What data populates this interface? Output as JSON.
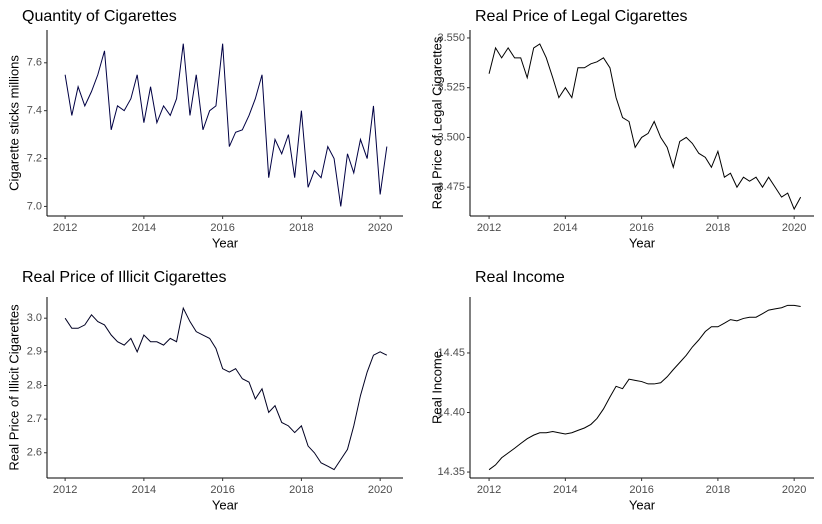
{
  "chart_data": [
    {
      "type": "line",
      "title": "Quantity of Cigarettes",
      "xlabel": "Year",
      "ylabel": "Cigarette sticks millions",
      "color": "#000044",
      "x": [
        2012.0,
        2012.17,
        2012.33,
        2012.5,
        2012.67,
        2012.83,
        2013.0,
        2013.17,
        2013.33,
        2013.5,
        2013.67,
        2013.83,
        2014.0,
        2014.17,
        2014.33,
        2014.5,
        2014.67,
        2014.83,
        2015.0,
        2015.17,
        2015.33,
        2015.5,
        2015.67,
        2015.83,
        2016.0,
        2016.17,
        2016.33,
        2016.5,
        2016.67,
        2016.83,
        2017.0,
        2017.17,
        2017.33,
        2017.5,
        2017.67,
        2017.83,
        2018.0,
        2018.17,
        2018.33,
        2018.5,
        2018.67,
        2018.83,
        2019.0,
        2019.17,
        2019.33,
        2019.5,
        2019.67,
        2019.83,
        2020.0,
        2020.17
      ],
      "values": [
        7.55,
        7.38,
        7.5,
        7.42,
        7.48,
        7.55,
        7.65,
        7.32,
        7.42,
        7.4,
        7.45,
        7.55,
        7.35,
        7.5,
        7.35,
        7.42,
        7.38,
        7.45,
        7.68,
        7.38,
        7.55,
        7.32,
        7.4,
        7.42,
        7.68,
        7.25,
        7.31,
        7.32,
        7.38,
        7.45,
        7.55,
        7.12,
        7.28,
        7.22,
        7.3,
        7.12,
        7.4,
        7.08,
        7.15,
        7.12,
        7.25,
        7.2,
        7.0,
        7.22,
        7.14,
        7.28,
        7.2,
        7.42,
        7.05,
        7.25
      ],
      "xlim": [
        2011.54,
        2020.58
      ],
      "ylim": [
        6.96,
        7.737
      ],
      "xticks": [
        2012,
        2014,
        2016,
        2018,
        2020
      ],
      "yticks": [
        {
          "value": 7.0,
          "label": "7.0"
        },
        7.2,
        7.4,
        7.6
      ]
    },
    {
      "type": "line",
      "title": "Real Price of Legal Cigarettes",
      "xlabel": "Year",
      "ylabel": "Real Price of Legal Cigarettes",
      "color": "#000000",
      "x": [
        2012.0,
        2012.17,
        2012.33,
        2012.5,
        2012.67,
        2012.83,
        2013.0,
        2013.17,
        2013.33,
        2013.5,
        2013.67,
        2013.83,
        2014.0,
        2014.17,
        2014.33,
        2014.5,
        2014.67,
        2014.83,
        2015.0,
        2015.17,
        2015.33,
        2015.5,
        2015.67,
        2015.83,
        2016.0,
        2016.17,
        2016.33,
        2016.5,
        2016.67,
        2016.83,
        2017.0,
        2017.17,
        2017.33,
        2017.5,
        2017.67,
        2017.83,
        2018.0,
        2018.17,
        2018.33,
        2018.5,
        2018.67,
        2018.83,
        2019.0,
        2019.17,
        2019.33,
        2019.5,
        2019.67,
        2019.83,
        2020.0,
        2020.17
      ],
      "values": [
        3.532,
        3.545,
        3.54,
        3.545,
        3.54,
        3.54,
        3.53,
        3.545,
        3.547,
        3.54,
        3.53,
        3.52,
        3.525,
        3.52,
        3.535,
        3.535,
        3.537,
        3.538,
        3.54,
        3.535,
        3.52,
        3.51,
        3.508,
        3.495,
        3.5,
        3.502,
        3.508,
        3.5,
        3.495,
        3.485,
        3.498,
        3.5,
        3.497,
        3.492,
        3.49,
        3.485,
        3.493,
        3.48,
        3.482,
        3.475,
        3.48,
        3.478,
        3.48,
        3.475,
        3.48,
        3.475,
        3.47,
        3.472,
        3.464,
        3.47
      ],
      "xlim": [
        2011.5,
        2020.52
      ],
      "ylim": [
        3.4605,
        3.554
      ],
      "xticks": [
        2012,
        2014,
        2016,
        2018,
        2020
      ],
      "yticks": [
        {
          "value": 3.475,
          "label": "3.475"
        },
        {
          "value": 3.5,
          "label": "3.500"
        },
        {
          "value": 3.525,
          "label": "3.525"
        },
        {
          "value": 3.55,
          "label": "3.550"
        }
      ]
    },
    {
      "type": "line",
      "title": "Real Price of Illicit Cigarettes",
      "xlabel": "Year",
      "ylabel": "Real Price of Illicit Cigarettes",
      "color": "#000022",
      "x": [
        2012.0,
        2012.17,
        2012.33,
        2012.5,
        2012.67,
        2012.83,
        2013.0,
        2013.17,
        2013.33,
        2013.5,
        2013.67,
        2013.83,
        2014.0,
        2014.17,
        2014.33,
        2014.5,
        2014.67,
        2014.83,
        2015.0,
        2015.17,
        2015.33,
        2015.5,
        2015.67,
        2015.83,
        2016.0,
        2016.17,
        2016.33,
        2016.5,
        2016.67,
        2016.83,
        2017.0,
        2017.17,
        2017.33,
        2017.5,
        2017.67,
        2017.83,
        2018.0,
        2018.17,
        2018.33,
        2018.5,
        2018.67,
        2018.83,
        2019.0,
        2019.17,
        2019.33,
        2019.5,
        2019.67,
        2019.83,
        2020.0,
        2020.17
      ],
      "values": [
        3.0,
        2.97,
        2.97,
        2.98,
        3.01,
        2.99,
        2.98,
        2.95,
        2.93,
        2.92,
        2.94,
        2.9,
        2.95,
        2.93,
        2.93,
        2.92,
        2.94,
        2.93,
        3.03,
        2.99,
        2.96,
        2.95,
        2.94,
        2.91,
        2.85,
        2.84,
        2.85,
        2.82,
        2.81,
        2.76,
        2.79,
        2.72,
        2.74,
        2.69,
        2.68,
        2.66,
        2.68,
        2.62,
        2.6,
        2.57,
        2.56,
        2.55,
        2.58,
        2.61,
        2.68,
        2.77,
        2.84,
        2.89,
        2.9,
        2.89
      ],
      "xlim": [
        2011.54,
        2020.58
      ],
      "ylim": [
        2.525,
        3.063
      ],
      "xticks": [
        2012,
        2014,
        2016,
        2018,
        2020
      ],
      "yticks": [
        2.6,
        2.7,
        2.8,
        2.9,
        {
          "value": 3.0,
          "label": "3.0"
        }
      ]
    },
    {
      "type": "line",
      "title": "Real Income",
      "xlabel": "Year",
      "ylabel": "Real Income",
      "color": "#000000",
      "x": [
        2012.0,
        2012.17,
        2012.33,
        2012.5,
        2012.67,
        2012.83,
        2013.0,
        2013.17,
        2013.33,
        2013.5,
        2013.67,
        2013.83,
        2014.0,
        2014.17,
        2014.33,
        2014.5,
        2014.67,
        2014.83,
        2015.0,
        2015.17,
        2015.33,
        2015.5,
        2015.67,
        2015.83,
        2016.0,
        2016.17,
        2016.33,
        2016.5,
        2016.67,
        2016.83,
        2017.0,
        2017.17,
        2017.33,
        2017.5,
        2017.67,
        2017.83,
        2018.0,
        2018.17,
        2018.33,
        2018.5,
        2018.67,
        2018.83,
        2019.0,
        2019.17,
        2019.33,
        2019.5,
        2019.67,
        2019.83,
        2020.0,
        2020.17
      ],
      "values": [
        14.352,
        14.356,
        14.362,
        14.366,
        14.37,
        14.374,
        14.378,
        14.381,
        14.383,
        14.383,
        14.384,
        14.383,
        14.382,
        14.383,
        14.385,
        14.387,
        14.39,
        14.395,
        14.403,
        14.413,
        14.422,
        14.42,
        14.428,
        14.427,
        14.426,
        14.424,
        14.424,
        14.425,
        14.43,
        14.436,
        14.442,
        14.448,
        14.455,
        14.461,
        14.468,
        14.472,
        14.472,
        14.475,
        14.478,
        14.477,
        14.479,
        14.48,
        14.48,
        14.483,
        14.486,
        14.487,
        14.488,
        14.49,
        14.49,
        14.489
      ],
      "xlim": [
        2011.5,
        2020.52
      ],
      "ylim": [
        14.345,
        14.497
      ],
      "xticks": [
        2012,
        2014,
        2016,
        2018,
        2020
      ],
      "yticks": [
        14.35,
        {
          "value": 14.4,
          "label": "14.40"
        },
        14.45
      ]
    }
  ]
}
